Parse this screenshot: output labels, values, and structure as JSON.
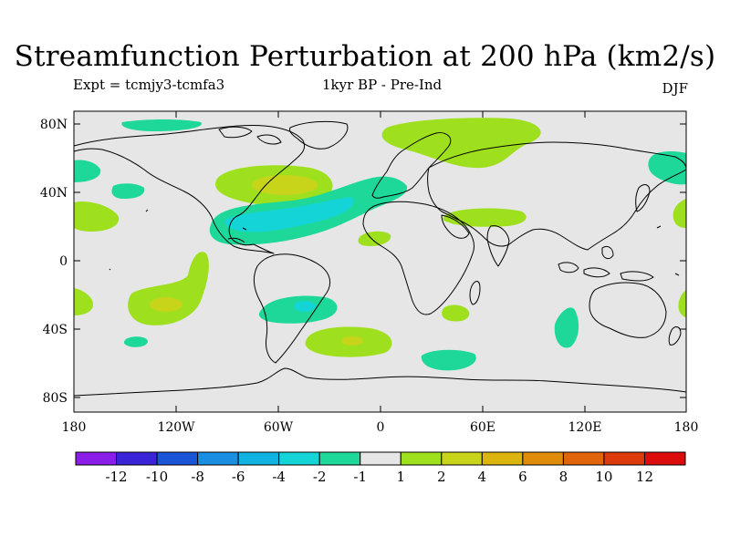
{
  "title": "Streamfunction Perturbation at 200 hPa (km2/s)",
  "subtitle_left": "Expt = tcmjy3-tcmfa3",
  "subtitle_center": "1kyr BP - Pre-Ind",
  "subtitle_right": "DJF",
  "lat_ticks": [
    "80N",
    "40N",
    "0",
    "40S",
    "80S"
  ],
  "lon_ticks": [
    "180",
    "120W",
    "60W",
    "0",
    "60E",
    "120E",
    "180"
  ],
  "colorbar": {
    "labels": [
      "-12",
      "-10",
      "-8",
      "-6",
      "-4",
      "-2",
      "-1",
      "1",
      "2",
      "4",
      "6",
      "8",
      "10",
      "12"
    ],
    "colors": [
      "#8a1ee8",
      "#3a24d8",
      "#1a55d8",
      "#1a8ee0",
      "#11b4e0",
      "#15d4d8",
      "#1ed89a",
      "#e6e6e6",
      "#9fe01e",
      "#c8d41a",
      "#dcb40e",
      "#e08c0a",
      "#e0640a",
      "#dc3a0a",
      "#dc0c0c"
    ]
  },
  "colors": {
    "background": "#e6e6e6",
    "coast": "#000000"
  }
}
